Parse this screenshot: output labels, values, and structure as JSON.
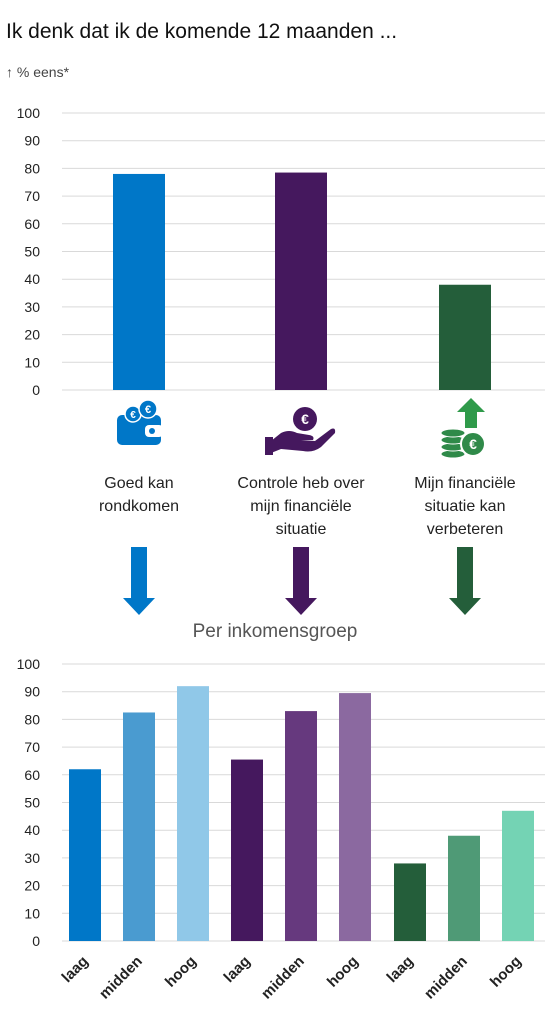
{
  "title": "Ik denk dat ik de komende 12 maanden ...",
  "unit": "↑ % eens*",
  "section_label": "Per inkomensgroep",
  "colors": {
    "blue": "#0077c8",
    "purple": "#45185e",
    "green": "#245e3a",
    "blue_shades": [
      "#0077c8",
      "#4a9bd0",
      "#90c8e8"
    ],
    "purple_shades": [
      "#45185e",
      "#66397e",
      "#8b69a0"
    ],
    "green_shades": [
      "#245e3a",
      "#4f9a76",
      "#74d3b4"
    ]
  },
  "chart_data": [
    {
      "type": "bar",
      "categories": [
        "Goed kan rondkomen",
        "Controle heb over mijn financiële situatie",
        "Mijn financiële situatie kan verbeteren"
      ],
      "category_lines": [
        [
          "Goed kan",
          "rondkomen"
        ],
        [
          "Controle heb over",
          "mijn financiële",
          "situatie"
        ],
        [
          "Mijn financiële",
          "situatie kan",
          "verbeteren"
        ]
      ],
      "values": [
        78,
        78.5,
        38
      ],
      "icons": [
        "wallet-euro-icon",
        "hand-euro-icon",
        "coins-arrow-up-icon"
      ],
      "ylim": [
        0,
        100
      ],
      "yticks": [
        0,
        10,
        20,
        30,
        40,
        50,
        60,
        70,
        80,
        90,
        100
      ],
      "grid": true
    },
    {
      "type": "bar",
      "title": "Per inkomensgroep",
      "categories": [
        "laag",
        "midden",
        "hoog",
        "laag",
        "midden",
        "hoog",
        "laag",
        "midden",
        "hoog"
      ],
      "groups": [
        "Goed kan rondkomen",
        "Controle heb over mijn financiële situatie",
        "Mijn financiële situatie kan verbeteren"
      ],
      "values": [
        62,
        82.5,
        92,
        65.5,
        83,
        89.5,
        28,
        38,
        47
      ],
      "ylim": [
        0,
        100
      ],
      "yticks": [
        0,
        10,
        20,
        30,
        40,
        50,
        60,
        70,
        80,
        90,
        100
      ],
      "grid": true
    }
  ]
}
